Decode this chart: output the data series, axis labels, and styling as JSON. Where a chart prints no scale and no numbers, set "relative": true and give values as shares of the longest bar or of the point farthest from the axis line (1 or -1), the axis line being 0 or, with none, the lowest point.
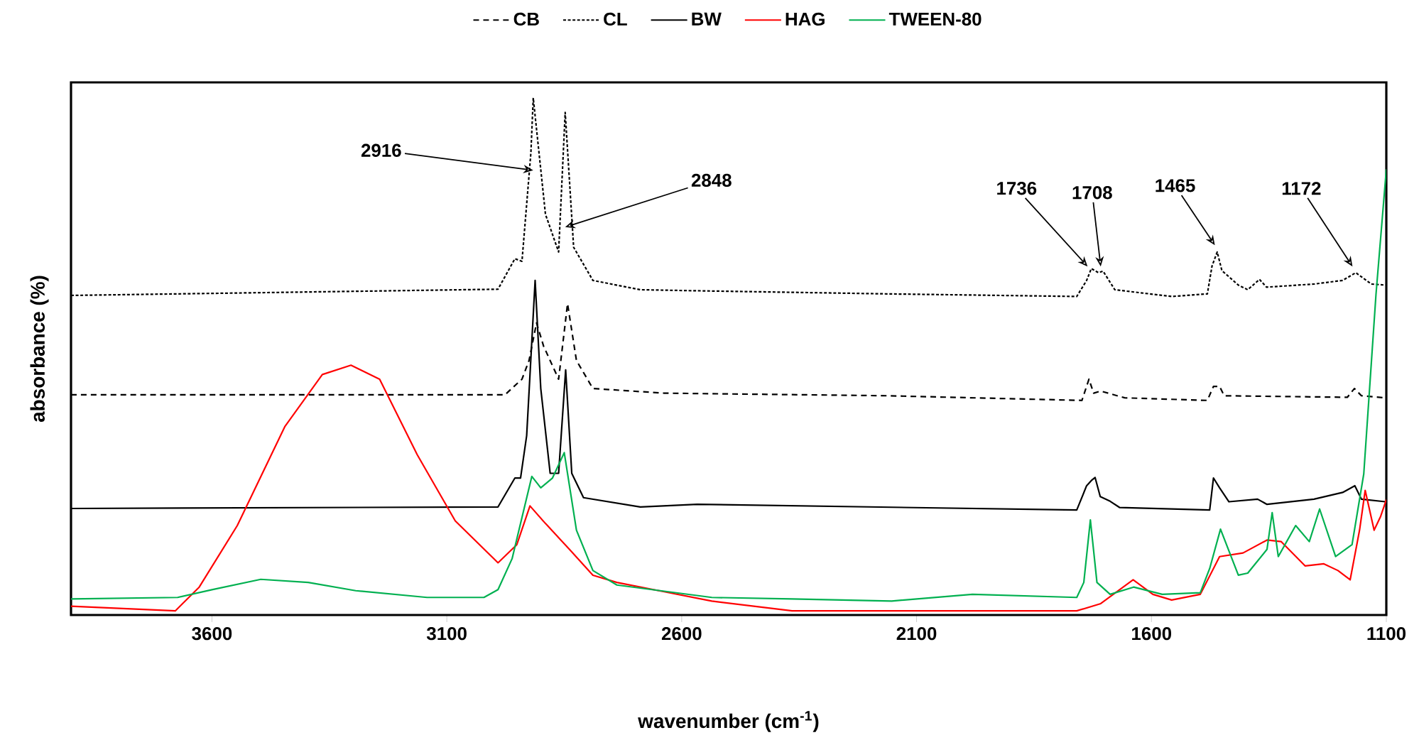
{
  "chart_data": {
    "type": "line",
    "relative": true,
    "xlabel": "wavenumber (cm$^{-1}$)",
    "ylabel": "absorbance (%)",
    "xlim": [
      3900,
      1100
    ],
    "xticks": [
      3600,
      3100,
      2600,
      2100,
      1600,
      1100
    ],
    "legend": "top",
    "marker": "none",
    "series": [
      {
        "name": "CB",
        "color": "#000000",
        "line_style": "dashed",
        "x": [
          3900,
          2976,
          2951,
          2940,
          2925,
          2909,
          2894,
          2862,
          2843,
          2824,
          2789,
          2637,
          2163,
          1748,
          1733,
          1723,
          1708,
          1657,
          1481,
          1468,
          1455,
          1445,
          1183,
          1168,
          1153,
          1102
        ],
        "values": [
          0.426,
          0.426,
          0.447,
          0.456,
          0.492,
          0.565,
          0.52,
          0.456,
          0.602,
          0.492,
          0.438,
          0.429,
          0.424,
          0.415,
          0.456,
          0.429,
          0.433,
          0.42,
          0.415,
          0.442,
          0.442,
          0.424,
          0.421,
          0.438,
          0.424,
          0.42
        ]
      },
      {
        "name": "CL",
        "color": "#000000",
        "line_style": "dotted",
        "x": [
          3900,
          2991,
          2955,
          2940,
          2921,
          2916,
          2890,
          2862,
          2848,
          2830,
          2789,
          2688,
          2567,
          2163,
          1759,
          1738,
          1728,
          1713,
          1703,
          1678,
          1557,
          1481,
          1471,
          1460,
          1450,
          1415,
          1395,
          1370,
          1355,
          1254,
          1193,
          1165,
          1132,
          1102
        ],
        "values": [
          0.618,
          0.63,
          0.689,
          0.684,
          0.894,
          1,
          0.775,
          0.702,
          0.972,
          0.711,
          0.647,
          0.629,
          0.627,
          0.621,
          0.616,
          0.647,
          0.67,
          0.662,
          0.665,
          0.629,
          0.616,
          0.621,
          0.675,
          0.702,
          0.666,
          0.638,
          0.629,
          0.649,
          0.634,
          0.64,
          0.647,
          0.662,
          0.64,
          0.638
        ]
      },
      {
        "name": "BW",
        "color": "#000000",
        "line_style": "solid",
        "x": [
          3900,
          2991,
          2955,
          2943,
          2930,
          2912,
          2900,
          2880,
          2862,
          2847,
          2834,
          2809,
          2688,
          2567,
          1759,
          1738,
          1728,
          1720,
          1709,
          1688,
          1668,
          1476,
          1468,
          1455,
          1435,
          1374,
          1354,
          1254,
          1193,
          1167,
          1153,
          1102
        ],
        "values": [
          0.206,
          0.209,
          0.265,
          0.265,
          0.347,
          0.647,
          0.438,
          0.274,
          0.274,
          0.474,
          0.274,
          0.227,
          0.209,
          0.214,
          0.203,
          0.25,
          0.26,
          0.266,
          0.229,
          0.22,
          0.208,
          0.203,
          0.265,
          0.246,
          0.219,
          0.224,
          0.214,
          0.224,
          0.237,
          0.25,
          0.224,
          0.219
        ]
      },
      {
        "name": "HAG",
        "color": "#ff0000",
        "line_style": "solid",
        "x": [
          3900,
          3678,
          3627,
          3546,
          3445,
          3365,
          3304,
          3243,
          3163,
          3082,
          2991,
          2951,
          2923,
          2890,
          2839,
          2789,
          2738,
          2637,
          2536,
          2365,
          2062,
          1759,
          1708,
          1639,
          1597,
          1557,
          1496,
          1455,
          1405,
          1354,
          1324,
          1273,
          1233,
          1203,
          1177,
          1157,
          1145,
          1126,
          1112,
          1100
        ],
        "values": [
          0.017,
          0.008,
          0.054,
          0.173,
          0.364,
          0.465,
          0.483,
          0.456,
          0.31,
          0.182,
          0.101,
          0.136,
          0.211,
          0.177,
          0.127,
          0.077,
          0.063,
          0.045,
          0.027,
          0.008,
          0.008,
          0.008,
          0.022,
          0.068,
          0.04,
          0.029,
          0.04,
          0.113,
          0.12,
          0.145,
          0.142,
          0.095,
          0.099,
          0.086,
          0.068,
          0.164,
          0.241,
          0.164,
          0.191,
          0.223
        ]
      },
      {
        "name": "TWEEN-80",
        "color": "#00b050",
        "line_style": "solid",
        "x": [
          3900,
          3673,
          3600,
          3496,
          3395,
          3294,
          3142,
          3021,
          2991,
          2961,
          2919,
          2900,
          2875,
          2850,
          2824,
          2789,
          2738,
          2536,
          2365,
          2153,
          1981,
          1759,
          1744,
          1730,
          1716,
          1688,
          1638,
          1577,
          1496,
          1476,
          1453,
          1415,
          1395,
          1354,
          1343,
          1330,
          1293,
          1264,
          1242,
          1208,
          1173,
          1148,
          1122,
          1100
        ],
        "values": [
          0.031,
          0.034,
          0.049,
          0.069,
          0.063,
          0.047,
          0.034,
          0.034,
          0.049,
          0.109,
          0.268,
          0.246,
          0.265,
          0.314,
          0.164,
          0.086,
          0.058,
          0.034,
          0.031,
          0.027,
          0.04,
          0.034,
          0.063,
          0.184,
          0.063,
          0.04,
          0.054,
          0.04,
          0.043,
          0.09,
          0.166,
          0.077,
          0.081,
          0.127,
          0.198,
          0.113,
          0.173,
          0.142,
          0.205,
          0.113,
          0.136,
          0.273,
          0.62,
          0.862
        ]
      }
    ],
    "annotations": [
      {
        "text": "2916",
        "x": 2916,
        "y": 0.86
      },
      {
        "text": "2848",
        "x": 2848,
        "y": 0.75
      },
      {
        "text": "1736",
        "x": 1736,
        "y": 0.674
      },
      {
        "text": "1708",
        "x": 1708,
        "y": 0.674
      },
      {
        "text": "1465",
        "x": 1465,
        "y": 0.715
      },
      {
        "text": "1172",
        "x": 1172,
        "y": 0.674
      }
    ]
  }
}
